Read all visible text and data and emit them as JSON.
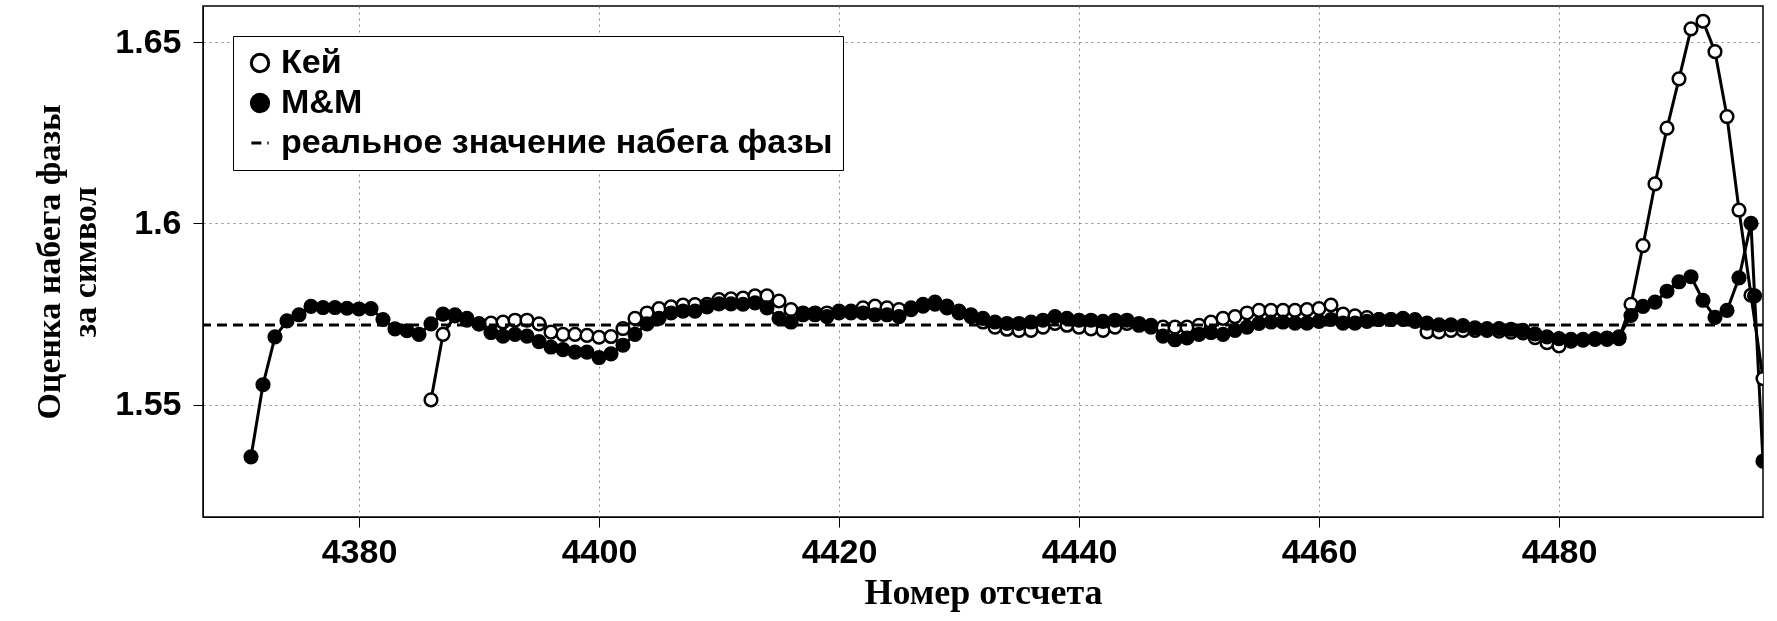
{
  "chart_data": {
    "type": "line",
    "xlabel": "Номер отсчета",
    "ylabel": "Оценка набега фазы\nза символ",
    "xlim": [
      4367,
      4497
    ],
    "xticks": [
      4380,
      4400,
      4420,
      4440,
      4460,
      4480
    ],
    "ylim": [
      1.519,
      1.66
    ],
    "yticks": [
      1.55,
      1.6,
      1.65
    ],
    "grid": true,
    "legend": "top left",
    "marker": "circle",
    "line_style": "solid",
    "ref_lines": [
      {
        "axis": "y",
        "value": 1.572,
        "label": "реальное значение набега фазы",
        "color": "#000000",
        "line_style": "dashed"
      }
    ],
    "series": [
      {
        "name": "Кей",
        "color": "#000000",
        "x": [
          4386,
          4387,
          4388,
          4389,
          4390,
          4391,
          4392,
          4393,
          4394,
          4395,
          4396,
          4397,
          4398,
          4399,
          4400,
          4401,
          4402,
          4403,
          4404,
          4405,
          4406,
          4407,
          4408,
          4409,
          4410,
          4411,
          4412,
          4413,
          4414,
          4415,
          4416,
          4417,
          4418,
          4419,
          4420,
          4421,
          4422,
          4423,
          4424,
          4425,
          4426,
          4427,
          4428,
          4429,
          4430,
          4431,
          4432,
          4433,
          4434,
          4435,
          4436,
          4437,
          4438,
          4439,
          4440,
          4441,
          4442,
          4443,
          4444,
          4445,
          4446,
          4447,
          4448,
          4449,
          4450,
          4451,
          4452,
          4453,
          4454,
          4455,
          4456,
          4457,
          4458,
          4459,
          4460,
          4461,
          4462,
          4463,
          4464,
          4465,
          4466,
          4467,
          4468,
          4469,
          4470,
          4471,
          4472,
          4473,
          4474,
          4475,
          4476,
          4477,
          4478,
          4479,
          4480,
          4481,
          4482,
          4483,
          4484,
          4485,
          4486,
          4487,
          4488,
          4489,
          4490,
          4491,
          4492,
          4493,
          4494,
          4495,
          4496,
          4497
        ],
        "values": [
          1.5513,
          1.5694,
          1.5745,
          1.5738,
          1.5723,
          1.5725,
          1.5728,
          1.5733,
          1.5733,
          1.5723,
          1.57,
          1.5694,
          1.5694,
          1.5691,
          1.5686,
          1.5688,
          1.571,
          1.5738,
          1.5753,
          1.5765,
          1.577,
          1.5775,
          1.5776,
          1.5777,
          1.579,
          1.5792,
          1.5794,
          1.58,
          1.58,
          1.5786,
          1.5762,
          1.5753,
          1.5753,
          1.5753,
          1.5758,
          1.5758,
          1.5767,
          1.5772,
          1.5767,
          1.5762,
          1.5767,
          1.5777,
          1.5783,
          1.5772,
          1.5753,
          1.5743,
          1.5728,
          1.5714,
          1.5708,
          1.5705,
          1.5705,
          1.5714,
          1.5724,
          1.5719,
          1.5714,
          1.5709,
          1.5705,
          1.5714,
          1.5724,
          1.5719,
          1.5714,
          1.5714,
          1.5714,
          1.5714,
          1.5719,
          1.5728,
          1.5738,
          1.5743,
          1.5753,
          1.576,
          1.576,
          1.576,
          1.576,
          1.5762,
          1.5765,
          1.5775,
          1.575,
          1.5745,
          1.574,
          1.5735,
          1.5735,
          1.5735,
          1.573,
          1.5701,
          1.5701,
          1.5705,
          1.5705,
          1.5705,
          1.5705,
          1.5703,
          1.57,
          1.5698,
          1.5685,
          1.5671,
          1.5662,
          1.5675,
          1.5678,
          1.568,
          1.568,
          1.5682,
          1.5777,
          1.5939,
          1.6109,
          1.6263,
          1.6399,
          1.6537,
          1.6558,
          1.6474,
          1.6295,
          1.6037,
          1.5802,
          1.5572
        ]
      },
      {
        "name": "M&M",
        "color": "#000000",
        "x": [
          4371,
          4372,
          4373,
          4374,
          4375,
          4376,
          4377,
          4378,
          4379,
          4380,
          4381,
          4382,
          4383,
          4384,
          4385,
          4386,
          4387,
          4388,
          4389,
          4390,
          4391,
          4392,
          4393,
          4394,
          4395,
          4396,
          4397,
          4398,
          4399,
          4400,
          4401,
          4402,
          4403,
          4404,
          4405,
          4406,
          4407,
          4408,
          4409,
          4410,
          4411,
          4412,
          4413,
          4414,
          4415,
          4416,
          4417,
          4418,
          4419,
          4420,
          4421,
          4422,
          4423,
          4424,
          4425,
          4426,
          4427,
          4428,
          4429,
          4430,
          4431,
          4432,
          4433,
          4434,
          4435,
          4436,
          4437,
          4438,
          4439,
          4440,
          4441,
          4442,
          4443,
          4444,
          4445,
          4446,
          4447,
          4448,
          4449,
          4450,
          4451,
          4452,
          4453,
          4454,
          4455,
          4456,
          4457,
          4458,
          4459,
          4460,
          4461,
          4462,
          4463,
          4464,
          4465,
          4466,
          4467,
          4468,
          4469,
          4470,
          4471,
          4472,
          4473,
          4474,
          4475,
          4476,
          4477,
          4478,
          4479,
          4480,
          4481,
          4482,
          4483,
          4484,
          4485,
          4486,
          4487,
          4488,
          4489,
          4490,
          4491,
          4492,
          4493,
          4494,
          4495,
          4496,
          4496.3,
          4497
        ],
        "values": [
          1.5356,
          1.5555,
          1.5687,
          1.5731,
          1.5748,
          1.5771,
          1.5768,
          1.5768,
          1.5766,
          1.5764,
          1.5765,
          1.5735,
          1.5709,
          1.5704,
          1.5694,
          1.5723,
          1.575,
          1.5748,
          1.5733,
          1.5723,
          1.5699,
          1.5689,
          1.5694,
          1.5689,
          1.5674,
          1.5659,
          1.5652,
          1.5645,
          1.5645,
          1.563,
          1.564,
          1.5664,
          1.5694,
          1.5723,
          1.5738,
          1.5753,
          1.5758,
          1.5758,
          1.577,
          1.5778,
          1.5778,
          1.5777,
          1.5781,
          1.5767,
          1.5738,
          1.5728,
          1.5748,
          1.5748,
          1.5743,
          1.5753,
          1.5753,
          1.5753,
          1.5748,
          1.5748,
          1.5743,
          1.5762,
          1.5772,
          1.5777,
          1.5767,
          1.5758,
          1.5748,
          1.5738,
          1.5728,
          1.5724,
          1.5724,
          1.5728,
          1.5733,
          1.5743,
          1.5738,
          1.5733,
          1.5733,
          1.573,
          1.5733,
          1.5733,
          1.5724,
          1.5719,
          1.5689,
          1.5679,
          1.5684,
          1.5694,
          1.5699,
          1.5694,
          1.5705,
          1.5714,
          1.5724,
          1.5728,
          1.5728,
          1.5725,
          1.5725,
          1.573,
          1.5735,
          1.5725,
          1.5725,
          1.573,
          1.5735,
          1.5735,
          1.5738,
          1.5735,
          1.5725,
          1.572,
          1.572,
          1.5718,
          1.5712,
          1.571,
          1.571,
          1.5708,
          1.5705,
          1.5695,
          1.5687,
          1.5682,
          1.568,
          1.568,
          1.5682,
          1.5684,
          1.5687,
          1.5746,
          1.5771,
          1.5783,
          1.5813,
          1.5839,
          1.5853,
          1.5788,
          1.5741,
          1.576,
          1.585,
          1.6,
          1.58,
          1.5344
        ]
      }
    ]
  }
}
